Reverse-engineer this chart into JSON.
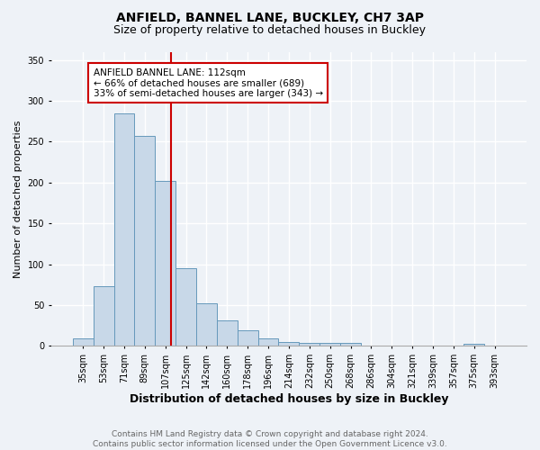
{
  "title1": "ANFIELD, BANNEL LANE, BUCKLEY, CH7 3AP",
  "title2": "Size of property relative to detached houses in Buckley",
  "xlabel": "Distribution of detached houses by size in Buckley",
  "ylabel": "Number of detached properties",
  "categories": [
    "35sqm",
    "53sqm",
    "71sqm",
    "89sqm",
    "107sqm",
    "125sqm",
    "142sqm",
    "160sqm",
    "178sqm",
    "196sqm",
    "214sqm",
    "232sqm",
    "250sqm",
    "268sqm",
    "286sqm",
    "304sqm",
    "321sqm",
    "339sqm",
    "357sqm",
    "375sqm",
    "393sqm"
  ],
  "values": [
    9,
    73,
    285,
    257,
    202,
    95,
    52,
    31,
    19,
    9,
    5,
    4,
    4,
    4,
    0,
    0,
    0,
    0,
    0,
    3,
    0
  ],
  "bar_color": "#c8d8e8",
  "bar_edgecolor": "#6699bb",
  "vline_color": "#cc0000",
  "annotation_text": "ANFIELD BANNEL LANE: 112sqm\n← 66% of detached houses are smaller (689)\n33% of semi-detached houses are larger (343) →",
  "annotation_box_color": "white",
  "annotation_box_edgecolor": "#cc0000",
  "ylim": [
    0,
    360
  ],
  "yticks": [
    0,
    50,
    100,
    150,
    200,
    250,
    300,
    350
  ],
  "background_color": "#eef2f7",
  "grid_color": "white",
  "footer_text": "Contains HM Land Registry data © Crown copyright and database right 2024.\nContains public sector information licensed under the Open Government Licence v3.0.",
  "title1_fontsize": 10,
  "title2_fontsize": 9,
  "xlabel_fontsize": 9,
  "ylabel_fontsize": 8,
  "tick_fontsize": 7,
  "annotation_fontsize": 7.5,
  "footer_fontsize": 6.5
}
